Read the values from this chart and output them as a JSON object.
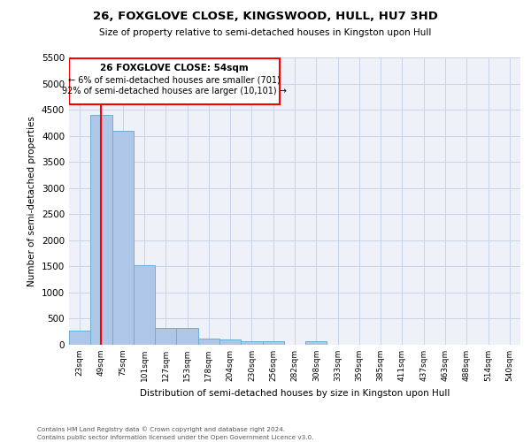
{
  "title": "26, FOXGLOVE CLOSE, KINGSWOOD, HULL, HU7 3HD",
  "subtitle": "Size of property relative to semi-detached houses in Kingston upon Hull",
  "xlabel": "Distribution of semi-detached houses by size in Kingston upon Hull",
  "ylabel": "Number of semi-detached properties",
  "footnote1": "Contains HM Land Registry data © Crown copyright and database right 2024.",
  "footnote2": "Contains public sector information licensed under the Open Government Licence v3.0.",
  "categories": [
    "23sqm",
    "49sqm",
    "75sqm",
    "101sqm",
    "127sqm",
    "153sqm",
    "178sqm",
    "204sqm",
    "230sqm",
    "256sqm",
    "282sqm",
    "308sqm",
    "333sqm",
    "359sqm",
    "385sqm",
    "411sqm",
    "437sqm",
    "463sqm",
    "488sqm",
    "514sqm",
    "540sqm"
  ],
  "values": [
    270,
    4400,
    4100,
    1530,
    330,
    330,
    120,
    100,
    70,
    60,
    0,
    60,
    0,
    0,
    0,
    0,
    0,
    0,
    0,
    0,
    0
  ],
  "bar_color": "#aec6e8",
  "bar_edge_color": "#6aafd6",
  "ylim_max": 5500,
  "yticks": [
    0,
    500,
    1000,
    1500,
    2000,
    2500,
    3000,
    3500,
    4000,
    4500,
    5000,
    5500
  ],
  "red_line_bin": 1,
  "annotation_line1": "26 FOXGLOVE CLOSE: 54sqm",
  "annotation_line2": "← 6% of semi-detached houses are smaller (701)",
  "annotation_line3": "92% of semi-detached houses are larger (10,101) →",
  "grid_color": "#c8d4e8",
  "background_color": "#eef2f8"
}
